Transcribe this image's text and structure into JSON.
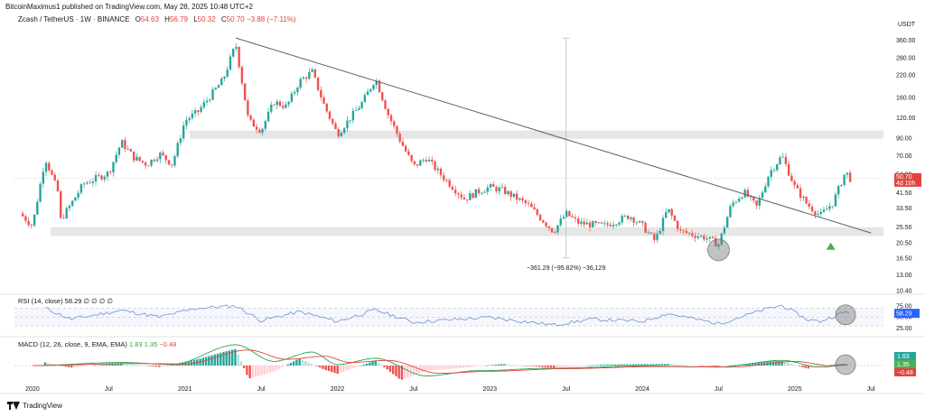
{
  "header": {
    "published": "BitcoinMaximus1 published on TradingView.com, May 28, 2025 10:48 UTC+2",
    "symbol": "Zcash / TetherUS · 1W · BINANCE",
    "ohlc": {
      "o_label": "O",
      "o": "54.63",
      "h_label": "H",
      "h": "56.79",
      "l_label": "L",
      "l": "50.32",
      "c_label": "C",
      "c": "50.70",
      "change": "−3.88 (−7.11%)"
    }
  },
  "colors": {
    "up": "#26a69a",
    "down": "#ef5350",
    "up_green": "#4caf50",
    "zone": "#e6e6e6",
    "rsi": "#7e9ad8",
    "macd_line": "#2aa24b",
    "signal_line": "#e0453d",
    "price_tag": "#e0453d"
  },
  "chart_data": [
    {
      "type": "candlestick",
      "series_label": "Zcash / TetherUS",
      "currency": "USDT",
      "scale": "log",
      "ylim": [
        10.4,
        400
      ],
      "y_ticks": [
        "360.00",
        "280.00",
        "220.00",
        "160.00",
        "120.00",
        "90.00",
        "70.00",
        "54.00",
        "41.50",
        "33.50",
        "25.50",
        "20.50",
        "16.50",
        "13.00",
        "10.40"
      ],
      "x_ticks": [
        "2020",
        "Jul",
        "2021",
        "Jul",
        "2022",
        "Jul",
        "2023",
        "Jul",
        "2024",
        "Jul",
        "2025",
        "Jul"
      ],
      "current_price": "50.70",
      "countdown": "4d 10h",
      "price_path": [
        {
          "t": "2019-12",
          "v": 31
        },
        {
          "t": "2020-01",
          "v": 26
        },
        {
          "t": "2020-02",
          "v": 68
        },
        {
          "t": "2020-03",
          "v": 42
        },
        {
          "t": "2020-03-12",
          "v": 26
        },
        {
          "t": "2020-04",
          "v": 35
        },
        {
          "t": "2020-05",
          "v": 47
        },
        {
          "t": "2020-07",
          "v": 55
        },
        {
          "t": "2020-08",
          "v": 85
        },
        {
          "t": "2020-09",
          "v": 68
        },
        {
          "t": "2020-10",
          "v": 62
        },
        {
          "t": "2020-11",
          "v": 72
        },
        {
          "t": "2020-12",
          "v": 62
        },
        {
          "t": "2021-01",
          "v": 115
        },
        {
          "t": "2021-02",
          "v": 130
        },
        {
          "t": "2021-04",
          "v": 205
        },
        {
          "t": "2021-05",
          "v": 340
        },
        {
          "t": "2021-06",
          "v": 115
        },
        {
          "t": "2021-07",
          "v": 100
        },
        {
          "t": "2021-08",
          "v": 150
        },
        {
          "t": "2021-09",
          "v": 140
        },
        {
          "t": "2021-10",
          "v": 200
        },
        {
          "t": "2021-11",
          "v": 230
        },
        {
          "t": "2021-12",
          "v": 140
        },
        {
          "t": "2022-01",
          "v": 95
        },
        {
          "t": "2022-03",
          "v": 150
        },
        {
          "t": "2022-04",
          "v": 210
        },
        {
          "t": "2022-05",
          "v": 125
        },
        {
          "t": "2022-06",
          "v": 85
        },
        {
          "t": "2022-07",
          "v": 60
        },
        {
          "t": "2022-08",
          "v": 68
        },
        {
          "t": "2022-09",
          "v": 55
        },
        {
          "t": "2022-11",
          "v": 38
        },
        {
          "t": "2022-12",
          "v": 42
        },
        {
          "t": "2023-01",
          "v": 45
        },
        {
          "t": "2023-02",
          "v": 43
        },
        {
          "t": "2023-04",
          "v": 35
        },
        {
          "t": "2023-06",
          "v": 24
        },
        {
          "t": "2023-07",
          "v": 31
        },
        {
          "t": "2023-08",
          "v": 27
        },
        {
          "t": "2023-10",
          "v": 26
        },
        {
          "t": "2023-12",
          "v": 30
        },
        {
          "t": "2024-01",
          "v": 26
        },
        {
          "t": "2024-02",
          "v": 21
        },
        {
          "t": "2024-03",
          "v": 33
        },
        {
          "t": "2024-04",
          "v": 24
        },
        {
          "t": "2024-06",
          "v": 22
        },
        {
          "t": "2024-07",
          "v": 20
        },
        {
          "t": "2024-08",
          "v": 35
        },
        {
          "t": "2024-09",
          "v": 42
        },
        {
          "t": "2024-10",
          "v": 34
        },
        {
          "t": "2024-11",
          "v": 55
        },
        {
          "t": "2024-12",
          "v": 70
        },
        {
          "t": "2025-01",
          "v": 45
        },
        {
          "t": "2025-02",
          "v": 35
        },
        {
          "t": "2025-03",
          "v": 30
        },
        {
          "t": "2025-04",
          "v": 36
        },
        {
          "t": "2025-05",
          "v": 56
        },
        {
          "t": "2025-05-26",
          "v": 50.7
        }
      ],
      "resistance_zone": [
        89,
        100
      ],
      "support_zone": [
        22.5,
        25.5
      ],
      "trendline": [
        {
          "t": "2021-05",
          "v": 370
        },
        {
          "t": "2025-07",
          "v": 23.5
        }
      ],
      "measure": {
        "from": {
          "t": "2023-07",
          "v": 370
        },
        "to": {
          "t": "2023-07",
          "v": 16.5
        },
        "label": "−361.29 (−95.82%) −36,129"
      },
      "annotations": [
        "circle at 2024-07 low",
        "green up-arrow 2025-04",
        "indicator circles 2025-05"
      ]
    },
    {
      "type": "line",
      "series_label": "RSI (14, close)",
      "legend": "RSI (14, close) 58.29 ∅ ∅ ∅ ∅",
      "ylim": [
        20,
        85
      ],
      "y_ticks": [
        "75.00",
        "50.00",
        "25.00"
      ],
      "bands": [
        30,
        70
      ],
      "current": "58.29",
      "points": [
        {
          "t": "2020-02",
          "v": 70
        },
        {
          "t": "2020-04",
          "v": 45
        },
        {
          "t": "2020-08",
          "v": 65
        },
        {
          "t": "2020-11",
          "v": 50
        },
        {
          "t": "2021-02",
          "v": 70
        },
        {
          "t": "2021-05",
          "v": 75
        },
        {
          "t": "2021-07",
          "v": 42
        },
        {
          "t": "2021-10",
          "v": 62
        },
        {
          "t": "2022-01",
          "v": 40
        },
        {
          "t": "2022-04",
          "v": 66
        },
        {
          "t": "2022-07",
          "v": 38
        },
        {
          "t": "2022-10",
          "v": 44
        },
        {
          "t": "2023-01",
          "v": 49
        },
        {
          "t": "2023-06",
          "v": 32
        },
        {
          "t": "2023-09",
          "v": 45
        },
        {
          "t": "2024-01",
          "v": 40
        },
        {
          "t": "2024-03",
          "v": 58
        },
        {
          "t": "2024-07",
          "v": 35
        },
        {
          "t": "2024-11",
          "v": 70
        },
        {
          "t": "2024-12",
          "v": 76
        },
        {
          "t": "2025-02",
          "v": 44
        },
        {
          "t": "2025-03",
          "v": 40
        },
        {
          "t": "2025-05",
          "v": 62
        },
        {
          "t": "2025-05-26",
          "v": 58.29
        }
      ]
    },
    {
      "type": "histogram",
      "series_label": "MACD (12, 26, close, 9, EMA, EMA)",
      "legend": "MACD (12, 26, close, 9, EMA, EMA)",
      "legend_values": [
        "1.83",
        "1.35",
        "−0.48"
      ],
      "ylim": [
        -40,
        40
      ],
      "hist": [
        {
          "t": "2020-02",
          "v": 6
        },
        {
          "t": "2020-04",
          "v": -4
        },
        {
          "t": "2020-08",
          "v": 5
        },
        {
          "t": "2020-11",
          "v": -3
        },
        {
          "t": "2021-02",
          "v": 12
        },
        {
          "t": "2021-04",
          "v": 26
        },
        {
          "t": "2021-05",
          "v": 32
        },
        {
          "t": "2021-06",
          "v": -25
        },
        {
          "t": "2021-08",
          "v": -12
        },
        {
          "t": "2021-10",
          "v": 14
        },
        {
          "t": "2021-12",
          "v": -8
        },
        {
          "t": "2022-01",
          "v": -16
        },
        {
          "t": "2022-04",
          "v": 10
        },
        {
          "t": "2022-06",
          "v": -28
        },
        {
          "t": "2022-08",
          "v": -10
        },
        {
          "t": "2022-11",
          "v": -4
        },
        {
          "t": "2023-02",
          "v": 3
        },
        {
          "t": "2023-06",
          "v": -4
        },
        {
          "t": "2023-10",
          "v": 2
        },
        {
          "t": "2024-03",
          "v": 3
        },
        {
          "t": "2024-07",
          "v": -2
        },
        {
          "t": "2024-11",
          "v": 8
        },
        {
          "t": "2024-12",
          "v": 9
        },
        {
          "t": "2025-02",
          "v": -6
        },
        {
          "t": "2025-04",
          "v": 2
        },
        {
          "t": "2025-05",
          "v": 4
        }
      ],
      "macd_line": [
        {
          "t": "2020-01",
          "v": 0
        },
        {
          "t": "2020-08",
          "v": 6
        },
        {
          "t": "2020-12",
          "v": 2
        },
        {
          "t": "2021-05",
          "v": 40
        },
        {
          "t": "2021-08",
          "v": 8
        },
        {
          "t": "2021-11",
          "v": 26
        },
        {
          "t": "2022-01",
          "v": 2
        },
        {
          "t": "2022-04",
          "v": 14
        },
        {
          "t": "2022-08",
          "v": -20
        },
        {
          "t": "2022-12",
          "v": -10
        },
        {
          "t": "2023-06",
          "v": -5
        },
        {
          "t": "2024-01",
          "v": -1
        },
        {
          "t": "2024-07",
          "v": -3
        },
        {
          "t": "2024-12",
          "v": 10
        },
        {
          "t": "2025-03",
          "v": -3
        },
        {
          "t": "2025-05-26",
          "v": 1.83
        }
      ],
      "signal_line": [
        {
          "t": "2020-01",
          "v": 0
        },
        {
          "t": "2020-09",
          "v": 4
        },
        {
          "t": "2021-01",
          "v": 3
        },
        {
          "t": "2021-06",
          "v": 30
        },
        {
          "t": "2021-09",
          "v": 12
        },
        {
          "t": "2021-12",
          "v": 18
        },
        {
          "t": "2022-02",
          "v": 6
        },
        {
          "t": "2022-05",
          "v": 10
        },
        {
          "t": "2022-09",
          "v": -15
        },
        {
          "t": "2023-01",
          "v": -11
        },
        {
          "t": "2023-07",
          "v": -6
        },
        {
          "t": "2024-02",
          "v": -2
        },
        {
          "t": "2024-08",
          "v": -3
        },
        {
          "t": "2025-01",
          "v": 8
        },
        {
          "t": "2025-04",
          "v": -1
        },
        {
          "t": "2025-05-26",
          "v": 1.35
        }
      ]
    }
  ],
  "footer": {
    "brand": "TradingView"
  }
}
